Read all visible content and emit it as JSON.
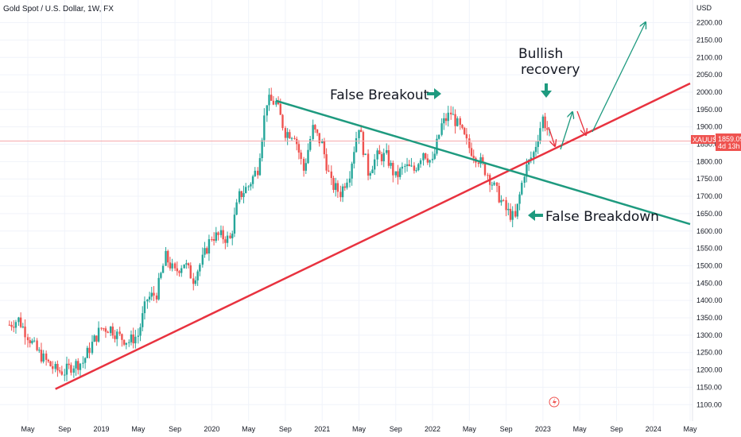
{
  "header": {
    "symbol_title": "Gold Spot / U.S. Dollar, 1W, FX",
    "currency": "USD"
  },
  "price_tag": {
    "symbol": "XAUUSD",
    "price": "1859.09",
    "countdown": "4d 13h",
    "value": 1859.09
  },
  "colors": {
    "up": "#26a69a",
    "down": "#ef5350",
    "support_line": "#e8323f",
    "resistance_line": "#1e9a7f",
    "arrow_green": "#1e9a7f",
    "arrow_red": "#e8323f",
    "price_line": "#f6a9ad"
  },
  "annotations": {
    "false_breakout": "False Breakout",
    "false_breakdown": "False Breakdown",
    "bullish_recovery_1": "Bullish",
    "bullish_recovery_2": "recovery"
  },
  "chart_data": {
    "type": "candlestick",
    "title": "Gold Spot / U.S. Dollar, 1W, FX",
    "interval": "1W",
    "yunit": "USD",
    "ylim": [
      1080,
      2215
    ],
    "ytick_step": 50,
    "xticks": [
      {
        "label": "May",
        "date": "2018-05"
      },
      {
        "label": "Sep",
        "date": "2018-09"
      },
      {
        "label": "2019",
        "date": "2019-01"
      },
      {
        "label": "May",
        "date": "2019-05"
      },
      {
        "label": "Sep",
        "date": "2019-09"
      },
      {
        "label": "2020",
        "date": "2020-01"
      },
      {
        "label": "May",
        "date": "2020-05"
      },
      {
        "label": "Sep",
        "date": "2020-09"
      },
      {
        "label": "2021",
        "date": "2021-01"
      },
      {
        "label": "May",
        "date": "2021-05"
      },
      {
        "label": "Sep",
        "date": "2021-09"
      },
      {
        "label": "2022",
        "date": "2022-01"
      },
      {
        "label": "May",
        "date": "2022-05"
      },
      {
        "label": "Sep",
        "date": "2022-09"
      },
      {
        "label": "2023",
        "date": "2023-01"
      },
      {
        "label": "May",
        "date": "2023-05"
      },
      {
        "label": "Sep",
        "date": "2023-09"
      },
      {
        "label": "2024",
        "date": "2024-01"
      },
      {
        "label": "May",
        "date": "2024-05"
      }
    ],
    "closes": [
      {
        "date": "2018-03",
        "value": 1330
      },
      {
        "date": "2018-04",
        "value": 1345
      },
      {
        "date": "2018-05",
        "value": 1300
      },
      {
        "date": "2018-06",
        "value": 1255
      },
      {
        "date": "2018-07",
        "value": 1225
      },
      {
        "date": "2018-08",
        "value": 1200
      },
      {
        "date": "2018-09",
        "value": 1195
      },
      {
        "date": "2018-10",
        "value": 1215
      },
      {
        "date": "2018-11",
        "value": 1222
      },
      {
        "date": "2018-12",
        "value": 1275
      },
      {
        "date": "2019-01",
        "value": 1320
      },
      {
        "date": "2019-02",
        "value": 1320
      },
      {
        "date": "2019-03",
        "value": 1295
      },
      {
        "date": "2019-04",
        "value": 1282
      },
      {
        "date": "2019-05",
        "value": 1300
      },
      {
        "date": "2019-06",
        "value": 1405
      },
      {
        "date": "2019-07",
        "value": 1420
      },
      {
        "date": "2019-08",
        "value": 1525
      },
      {
        "date": "2019-09",
        "value": 1480
      },
      {
        "date": "2019-10",
        "value": 1510
      },
      {
        "date": "2019-11",
        "value": 1462
      },
      {
        "date": "2019-12",
        "value": 1517
      },
      {
        "date": "2020-01",
        "value": 1585
      },
      {
        "date": "2020-02",
        "value": 1585
      },
      {
        "date": "2020-03",
        "value": 1575
      },
      {
        "date": "2020-04",
        "value": 1700
      },
      {
        "date": "2020-05",
        "value": 1730
      },
      {
        "date": "2020-06",
        "value": 1780
      },
      {
        "date": "2020-07",
        "value": 1975
      },
      {
        "date": "2020-08",
        "value": 1970
      },
      {
        "date": "2020-09",
        "value": 1885
      },
      {
        "date": "2020-10",
        "value": 1880
      },
      {
        "date": "2020-11",
        "value": 1775
      },
      {
        "date": "2020-12",
        "value": 1895
      },
      {
        "date": "2021-01",
        "value": 1850
      },
      {
        "date": "2021-02",
        "value": 1735
      },
      {
        "date": "2021-03",
        "value": 1710
      },
      {
        "date": "2021-04",
        "value": 1770
      },
      {
        "date": "2021-05",
        "value": 1905
      },
      {
        "date": "2021-06",
        "value": 1770
      },
      {
        "date": "2021-07",
        "value": 1815
      },
      {
        "date": "2021-08",
        "value": 1815
      },
      {
        "date": "2021-09",
        "value": 1755
      },
      {
        "date": "2021-10",
        "value": 1785
      },
      {
        "date": "2021-11",
        "value": 1775
      },
      {
        "date": "2021-12",
        "value": 1830
      },
      {
        "date": "2022-01",
        "value": 1795
      },
      {
        "date": "2022-02",
        "value": 1905
      },
      {
        "date": "2022-03",
        "value": 1940
      },
      {
        "date": "2022-04",
        "value": 1895
      },
      {
        "date": "2022-05",
        "value": 1840
      },
      {
        "date": "2022-06",
        "value": 1808
      },
      {
        "date": "2022-07",
        "value": 1765
      },
      {
        "date": "2022-08",
        "value": 1712
      },
      {
        "date": "2022-09",
        "value": 1660
      },
      {
        "date": "2022-10",
        "value": 1635
      },
      {
        "date": "2022-11",
        "value": 1770
      },
      {
        "date": "2022-12",
        "value": 1825
      },
      {
        "date": "2023-01",
        "value": 1925
      },
      {
        "date": "2023-02",
        "value": 1860
      }
    ],
    "trend_lines": [
      {
        "name": "support",
        "from": {
          "date": "2018-08",
          "value": 1145
        },
        "to": {
          "date": "2024-05",
          "value": 2025
        }
      },
      {
        "name": "resistance",
        "from": {
          "date": "2020-08",
          "value": 1975
        },
        "to": {
          "date": "2024-05",
          "value": 1620
        }
      }
    ],
    "grid": true,
    "price_scale": "right"
  }
}
